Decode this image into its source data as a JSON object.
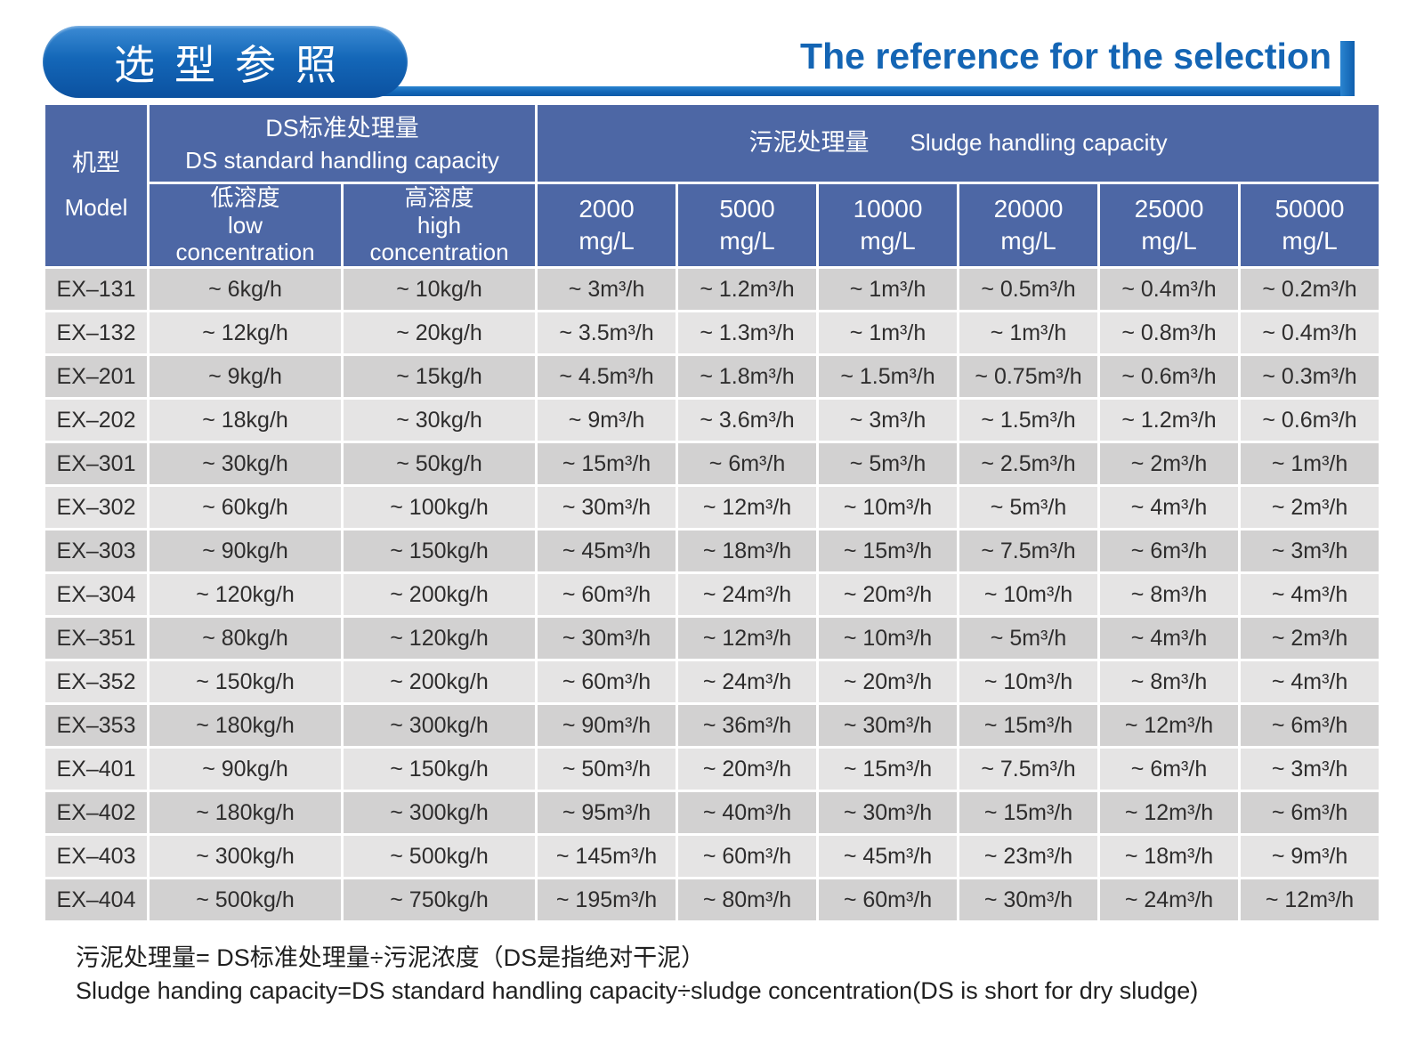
{
  "header": {
    "badge_zh": "选型参照",
    "title_en": "The reference for the selection",
    "accent_blue": "#1266b6",
    "header_cell_blue": "#4d67a5",
    "row_dark": "#d2d1d1",
    "row_light": "#e5e4e4"
  },
  "table": {
    "model_header": {
      "zh": "机型",
      "en": "Model"
    },
    "ds_group": {
      "zh": "DS标准处理量",
      "en": "DS standard handling capacity"
    },
    "sludge_group": {
      "zh": "污泥处理量",
      "en": "Sludge handling capacity"
    },
    "sub_low": {
      "zh": "低溶度",
      "en1": "low",
      "en2": "concentration"
    },
    "sub_high": {
      "zh": "高溶度",
      "en1": "high",
      "en2": "concentration"
    },
    "mg_columns": [
      {
        "value": "2000",
        "unit": "mg/L"
      },
      {
        "value": "5000",
        "unit": "mg/L"
      },
      {
        "value": "10000",
        "unit": "mg/L"
      },
      {
        "value": "20000",
        "unit": "mg/L"
      },
      {
        "value": "25000",
        "unit": "mg/L"
      },
      {
        "value": "50000",
        "unit": "mg/L"
      }
    ],
    "rows": [
      {
        "model": "EX–131",
        "values": [
          "~ 6kg/h",
          "~ 10kg/h",
          "~ 3m³/h",
          "~ 1.2m³/h",
          "~ 1m³/h",
          "~ 0.5m³/h",
          "~ 0.4m³/h",
          "~ 0.2m³/h"
        ]
      },
      {
        "model": "EX–132",
        "values": [
          "~ 12kg/h",
          "~ 20kg/h",
          "~ 3.5m³/h",
          "~ 1.3m³/h",
          "~ 1m³/h",
          "~ 1m³/h",
          "~ 0.8m³/h",
          "~ 0.4m³/h"
        ]
      },
      {
        "model": "EX–201",
        "values": [
          "~ 9kg/h",
          "~ 15kg/h",
          "~ 4.5m³/h",
          "~ 1.8m³/h",
          "~ 1.5m³/h",
          "~ 0.75m³/h",
          "~ 0.6m³/h",
          "~ 0.3m³/h"
        ]
      },
      {
        "model": "EX–202",
        "values": [
          "~ 18kg/h",
          "~ 30kg/h",
          "~ 9m³/h",
          "~ 3.6m³/h",
          "~ 3m³/h",
          "~ 1.5m³/h",
          "~ 1.2m³/h",
          "~ 0.6m³/h"
        ]
      },
      {
        "model": "EX–301",
        "values": [
          "~ 30kg/h",
          "~ 50kg/h",
          "~ 15m³/h",
          "~ 6m³/h",
          "~ 5m³/h",
          "~ 2.5m³/h",
          "~ 2m³/h",
          "~ 1m³/h"
        ]
      },
      {
        "model": "EX–302",
        "values": [
          "~ 60kg/h",
          "~ 100kg/h",
          "~ 30m³/h",
          "~ 12m³/h",
          "~ 10m³/h",
          "~ 5m³/h",
          "~ 4m³/h",
          "~ 2m³/h"
        ]
      },
      {
        "model": "EX–303",
        "values": [
          "~ 90kg/h",
          "~ 150kg/h",
          "~ 45m³/h",
          "~ 18m³/h",
          "~ 15m³/h",
          "~ 7.5m³/h",
          "~ 6m³/h",
          "~ 3m³/h"
        ]
      },
      {
        "model": "EX–304",
        "values": [
          "~ 120kg/h",
          "~ 200kg/h",
          "~ 60m³/h",
          "~ 24m³/h",
          "~ 20m³/h",
          "~ 10m³/h",
          "~ 8m³/h",
          "~ 4m³/h"
        ]
      },
      {
        "model": "EX–351",
        "values": [
          "~ 80kg/h",
          "~ 120kg/h",
          "~ 30m³/h",
          "~ 12m³/h",
          "~ 10m³/h",
          "~ 5m³/h",
          "~ 4m³/h",
          "~ 2m³/h"
        ]
      },
      {
        "model": "EX–352",
        "values": [
          "~ 150kg/h",
          "~ 200kg/h",
          "~ 60m³/h",
          "~ 24m³/h",
          "~ 20m³/h",
          "~ 10m³/h",
          "~ 8m³/h",
          "~ 4m³/h"
        ]
      },
      {
        "model": "EX–353",
        "values": [
          "~ 180kg/h",
          "~ 300kg/h",
          "~ 90m³/h",
          "~ 36m³/h",
          "~ 30m³/h",
          "~ 15m³/h",
          "~ 12m³/h",
          "~ 6m³/h"
        ]
      },
      {
        "model": "EX–401",
        "values": [
          "~ 90kg/h",
          "~ 150kg/h",
          "~ 50m³/h",
          "~ 20m³/h",
          "~ 15m³/h",
          "~ 7.5m³/h",
          "~ 6m³/h",
          "~ 3m³/h"
        ]
      },
      {
        "model": "EX–402",
        "values": [
          "~ 180kg/h",
          "~ 300kg/h",
          "~ 95m³/h",
          "~ 40m³/h",
          "~ 30m³/h",
          "~ 15m³/h",
          "~ 12m³/h",
          "~ 6m³/h"
        ]
      },
      {
        "model": "EX–403",
        "values": [
          "~ 300kg/h",
          "~ 500kg/h",
          "~ 145m³/h",
          "~ 60m³/h",
          "~ 45m³/h",
          "~ 23m³/h",
          "~ 18m³/h",
          "~ 9m³/h"
        ]
      },
      {
        "model": "EX–404",
        "values": [
          "~ 500kg/h",
          "~ 750kg/h",
          "~ 195m³/h",
          "~ 80m³/h",
          "~ 60m³/h",
          "~ 30m³/h",
          "~ 24m³/h",
          "~ 12m³/h"
        ]
      }
    ]
  },
  "notes": {
    "zh": "污泥处理量= DS标准处理量÷污泥浓度（DS是指绝对干泥）",
    "en": "Sludge handing capacity=DS standard handling capacity÷sludge concentration(DS is short for dry sludge)"
  }
}
